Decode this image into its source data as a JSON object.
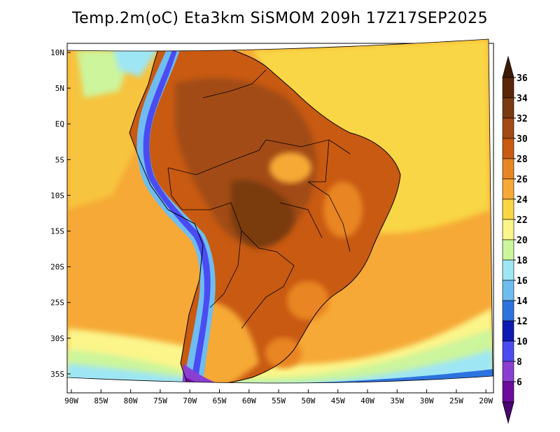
{
  "title": "Temp.2m(oC) Eta3km SiSMOM 209h 17Z17SEP2025",
  "map": {
    "variable": "2 m air temperature",
    "units": "oC",
    "lat_labels": [
      "10N",
      "5N",
      "EQ",
      "5S",
      "10S",
      "15S",
      "20S",
      "25S",
      "30S",
      "35S"
    ],
    "lon_labels": [
      "90W",
      "85W",
      "80W",
      "75W",
      "70W",
      "65W",
      "60W",
      "55W",
      "50W",
      "45W",
      "40W",
      "35W",
      "30W",
      "25W",
      "20W"
    ]
  },
  "colorbar": {
    "labels": [
      "36",
      "34",
      "32",
      "30",
      "28",
      "26",
      "24",
      "22",
      "20",
      "18",
      "16",
      "14",
      "12",
      "10",
      "8",
      "6"
    ],
    "colors": [
      "#5a2608",
      "#7a3a10",
      "#a24b14",
      "#c85a12",
      "#e98522",
      "#f6a936",
      "#f9d644",
      "#fbf58a",
      "#ccf59c",
      "#9fe6f4",
      "#6fbdf0",
      "#2d73e0",
      "#0d1ab4",
      "#4a4cf2",
      "#8a3fd2",
      "#6c0b9f"
    ],
    "tip_top_color": "#3e1a05",
    "tip_bottom_color": "#4a0570"
  }
}
